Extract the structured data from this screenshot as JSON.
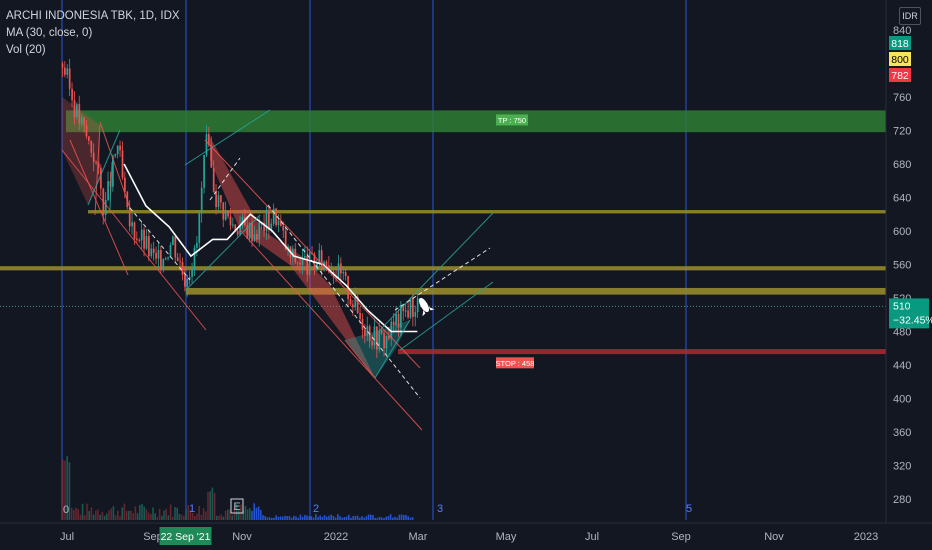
{
  "legend": {
    "symbol": "ARCHI INDONESIA TBK, 1D, IDX",
    "ma": "MA (30, close, 0)",
    "vol": "Vol (20)"
  },
  "currency": "IDR",
  "price_badges": [
    {
      "value": "818",
      "bg": "#089981",
      "fg": "#ffffff"
    },
    {
      "value": "800",
      "bg": "#f7e55a",
      "fg": "#000000"
    },
    {
      "value": "782",
      "bg": "#f23645",
      "fg": "#ffffff"
    }
  ],
  "last_price": {
    "price": "510",
    "change": "−32.45%",
    "bg": "#089981"
  },
  "date_badge": "22 Sep '21",
  "event_marker": "E",
  "zones": {
    "tp_label": "TP : 750",
    "stop_label": "STOP : 458"
  },
  "vertical_numbers": [
    "1",
    "2",
    "3",
    "5"
  ],
  "volume_zero": "0",
  "colors": {
    "background": "#131722",
    "up": "#26a69a",
    "down": "#ef5350",
    "ma": "#ffffff",
    "vline": "#2962ff",
    "band": "#9c8f2c",
    "tp": "#2e7d32",
    "stop": "#b22833"
  },
  "chart_data": {
    "type": "candlestick",
    "title": "ARCHI INDONESIA TBK, 1D, IDX",
    "y_ticks": [
      "840",
      "760",
      "720",
      "680",
      "640",
      "600",
      "560",
      "520",
      "480",
      "440",
      "400",
      "360",
      "320",
      "280"
    ],
    "x_ticks": [
      "Jul",
      "Sep",
      "Nov",
      "2022",
      "Mar",
      "May",
      "Jul",
      "Sep",
      "Nov",
      "2023"
    ],
    "ylim": [
      250,
      850
    ],
    "close_path": [
      {
        "x": "2021-06-28",
        "y": 800
      },
      {
        "x": "2021-07-08",
        "y": 740
      },
      {
        "x": "2021-07-20",
        "y": 690
      },
      {
        "x": "2021-07-27",
        "y": 625
      },
      {
        "x": "2021-08-05",
        "y": 705
      },
      {
        "x": "2021-08-12",
        "y": 610
      },
      {
        "x": "2021-08-22",
        "y": 590
      },
      {
        "x": "2021-09-01",
        "y": 560
      },
      {
        "x": "2021-09-12",
        "y": 590
      },
      {
        "x": "2021-09-20",
        "y": 545
      },
      {
        "x": "2021-09-28",
        "y": 575
      },
      {
        "x": "2021-10-05",
        "y": 705
      },
      {
        "x": "2021-10-12",
        "y": 640
      },
      {
        "x": "2021-10-22",
        "y": 610
      },
      {
        "x": "2021-11-08",
        "y": 600
      },
      {
        "x": "2021-11-22",
        "y": 620
      },
      {
        "x": "2021-12-01",
        "y": 570
      },
      {
        "x": "2021-12-15",
        "y": 560
      },
      {
        "x": "2021-12-28",
        "y": 565
      },
      {
        "x": "2022-01-08",
        "y": 540
      },
      {
        "x": "2022-01-18",
        "y": 500
      },
      {
        "x": "2022-01-28",
        "y": 475
      },
      {
        "x": "2022-02-05",
        "y": 470
      },
      {
        "x": "2022-02-12",
        "y": 490
      },
      {
        "x": "2022-02-22",
        "y": 510
      },
      {
        "x": "2022-02-28",
        "y": 510
      }
    ],
    "ma30_path": [
      {
        "x": "2021-08-10",
        "y": 680
      },
      {
        "x": "2021-08-25",
        "y": 630
      },
      {
        "x": "2021-09-10",
        "y": 605
      },
      {
        "x": "2021-09-25",
        "y": 570
      },
      {
        "x": "2021-10-10",
        "y": 590
      },
      {
        "x": "2021-10-20",
        "y": 590
      },
      {
        "x": "2021-11-05",
        "y": 620
      },
      {
        "x": "2021-11-20",
        "y": 600
      },
      {
        "x": "2021-12-05",
        "y": 570
      },
      {
        "x": "2021-12-25",
        "y": 560
      },
      {
        "x": "2022-01-10",
        "y": 535
      },
      {
        "x": "2022-01-25",
        "y": 505
      },
      {
        "x": "2022-02-10",
        "y": 480
      },
      {
        "x": "2022-02-28",
        "y": 480
      }
    ],
    "levels": [
      {
        "name": "TP : 750",
        "from": 718,
        "to": 744
      },
      {
        "name": "resistance",
        "from": 621,
        "to": 625
      },
      {
        "name": "resistance",
        "from": 553,
        "to": 558
      },
      {
        "name": "resistance",
        "from": 524,
        "to": 532
      },
      {
        "name": "STOP : 458",
        "from": 453,
        "to": 459
      }
    ],
    "last": {
      "price": 510,
      "change_pct": -32.45
    },
    "highlight_date": "2021-09-22"
  }
}
